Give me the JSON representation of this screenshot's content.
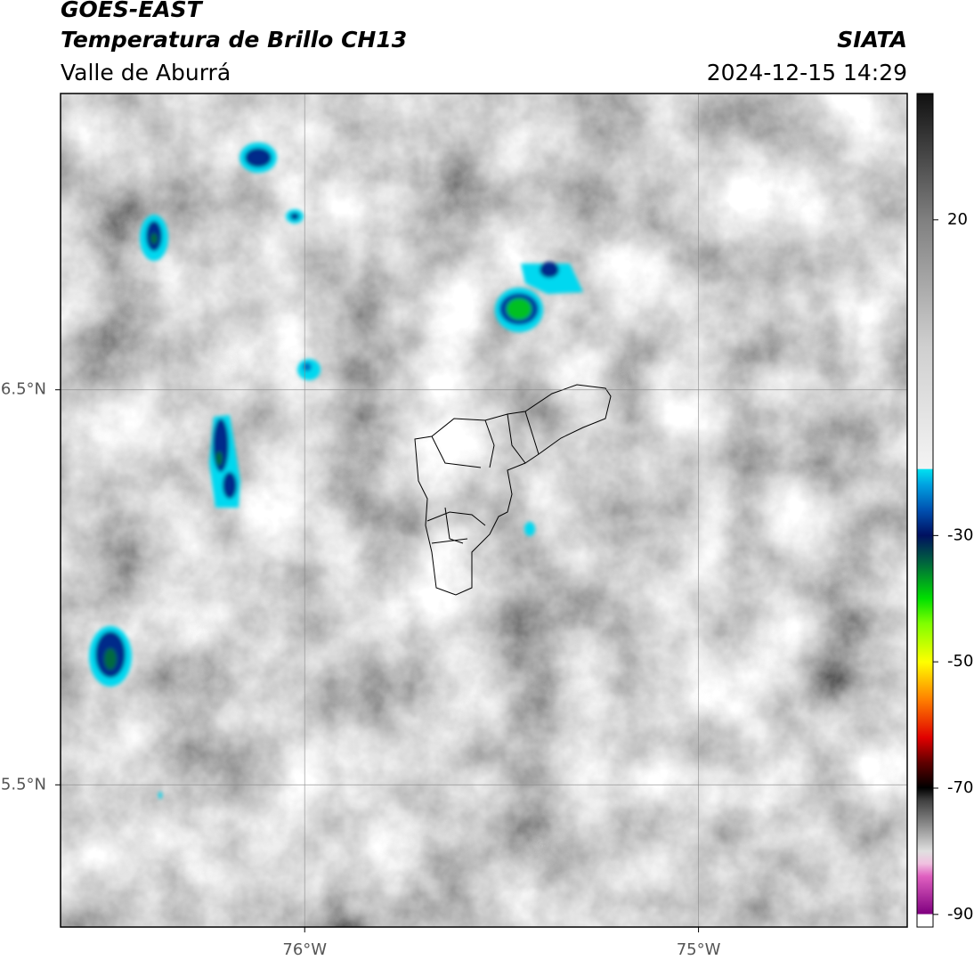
{
  "header": {
    "title": "GOES-EAST",
    "subtitle": "Temperatura de Brillo CH13",
    "region": "Valle de Aburrá",
    "source": "SIATA",
    "datetime": "2024-12-15 14:29"
  },
  "map": {
    "xlim": [
      -76.62,
      -74.47
    ],
    "ylim": [
      5.14,
      7.25
    ],
    "xticks": [
      {
        "value": -76,
        "label": "76°W"
      },
      {
        "value": -75,
        "label": "75°W"
      }
    ],
    "yticks": [
      {
        "value": 6.5,
        "label": "6.5°N"
      },
      {
        "value": 5.5,
        "label": "5.5°N"
      }
    ],
    "grid": true
  },
  "colorbar": {
    "lim": [
      -92,
      40
    ],
    "ticks": [
      20,
      -30,
      -50,
      -70,
      -90
    ]
  }
}
